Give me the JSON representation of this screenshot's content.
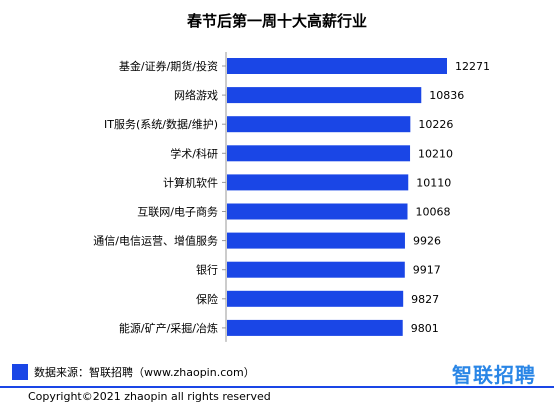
{
  "chart_data": {
    "type": "bar",
    "orientation": "horizontal",
    "title": "春节后第一周十大高薪行业",
    "categories": [
      "基金/证券/期货/投资",
      "网络游戏",
      "IT服务(系统/数据/维护)",
      "学术/科研",
      "计算机软件",
      "互联网/电子商务",
      "通信/电信运营、增值服务",
      "银行",
      "保险",
      "能源/矿产/采掘/冶炼"
    ],
    "values": [
      12271,
      10836,
      10226,
      10210,
      10110,
      10068,
      9926,
      9917,
      9827,
      9801
    ],
    "bar_color": "#1a46e6",
    "grid": false,
    "legend": false
  },
  "footer": {
    "source": "数据来源：智联招聘（www.zhaopin.com）",
    "logo": "智联招聘",
    "copyright": "Copyright©2021 zhaopin all rights reserved"
  },
  "colors": {
    "accent": "#1a46e6",
    "logo": "#2a86e6"
  }
}
